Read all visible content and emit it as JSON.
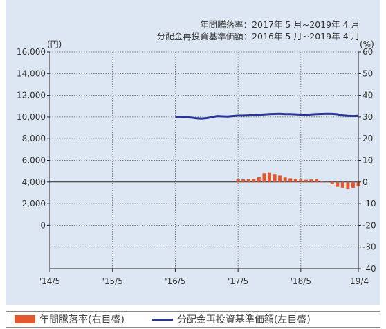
{
  "header": {
    "line1": "年間騰落率：2017年 5 月~2019年 4 月",
    "line2": "分配金再投資基準価額：2016年 5 月~2019年 4 月"
  },
  "colors": {
    "bar": "#e4582f",
    "line": "#2b3593",
    "panel": "#dde7f3",
    "grid": "#555555"
  },
  "chart_data": {
    "type": "bar+line",
    "left_axis": {
      "unit": "(円)",
      "range": [
        -4000,
        16000
      ],
      "tick_values": [
        0,
        2000,
        4000,
        6000,
        8000,
        10000,
        12000,
        14000,
        16000
      ],
      "tick_labels": [
        "0",
        "2,000",
        "4,000",
        "6,000",
        "8,000",
        "10,000",
        "12,000",
        "14,000",
        "16,000"
      ]
    },
    "right_axis": {
      "unit": "(%)",
      "range": [
        -40,
        60
      ],
      "tick_values": [
        -40,
        -30,
        -20,
        -10,
        0,
        10,
        20,
        30,
        40,
        50,
        60
      ],
      "tick_labels": [
        "-40",
        "-30",
        "-20",
        "-10",
        "0",
        "10",
        "20",
        "30",
        "40",
        "50",
        "60"
      ]
    },
    "x_axis": {
      "range": [
        "2014-05",
        "2019-04"
      ],
      "tick_dates": [
        "2014-05",
        "2015-05",
        "2016-05",
        "2017-05",
        "2018-05",
        "2019-04"
      ],
      "tick_labels": [
        "'14/5",
        "'15/5",
        "'16/5",
        "'17/5",
        "'18/5",
        "'19/4"
      ]
    },
    "series": [
      {
        "name": "分配金再投資基準価額(左目盛)",
        "kind": "line",
        "axis": "left",
        "x": [
          "2016-05",
          "2016-06",
          "2016-07",
          "2016-08",
          "2016-09",
          "2016-10",
          "2016-11",
          "2016-12",
          "2017-01",
          "2017-02",
          "2017-03",
          "2017-04",
          "2017-05",
          "2017-06",
          "2017-07",
          "2017-08",
          "2017-09",
          "2017-10",
          "2017-11",
          "2017-12",
          "2018-01",
          "2018-02",
          "2018-03",
          "2018-04",
          "2018-05",
          "2018-06",
          "2018-07",
          "2018-08",
          "2018-09",
          "2018-10",
          "2018-11",
          "2018-12",
          "2019-01",
          "2019-02",
          "2019-03",
          "2019-04"
        ],
        "values": [
          10000,
          10000,
          9980,
          9950,
          9880,
          9850,
          9900,
          9980,
          10080,
          10060,
          10040,
          10080,
          10120,
          10130,
          10150,
          10170,
          10200,
          10230,
          10260,
          10280,
          10300,
          10270,
          10260,
          10240,
          10220,
          10200,
          10230,
          10260,
          10280,
          10300,
          10290,
          10250,
          10150,
          10100,
          10080,
          10100
        ]
      },
      {
        "name": "年間騰落率(右目盛)",
        "kind": "bar",
        "axis": "right",
        "x": [
          "2017-05",
          "2017-06",
          "2017-07",
          "2017-08",
          "2017-09",
          "2017-10",
          "2017-11",
          "2017-12",
          "2018-01",
          "2018-02",
          "2018-03",
          "2018-04",
          "2018-05",
          "2018-06",
          "2018-07",
          "2018-08",
          "2018-09",
          "2018-10",
          "2018-11",
          "2018-12",
          "2019-01",
          "2019-02",
          "2019-03",
          "2019-04"
        ],
        "values": [
          1.2,
          1.2,
          1.3,
          1.4,
          2.2,
          4.0,
          4.2,
          3.7,
          3.0,
          2.1,
          1.7,
          1.5,
          1.2,
          1.0,
          1.2,
          1.3,
          0.4,
          -0.2,
          -1.0,
          -2.2,
          -2.6,
          -3.3,
          -2.6,
          -2.0
        ]
      }
    ]
  },
  "legend": {
    "bar_label": "年間騰落率(右目盛)",
    "line_label": "分配金再投資基準価額(左目盛)"
  }
}
